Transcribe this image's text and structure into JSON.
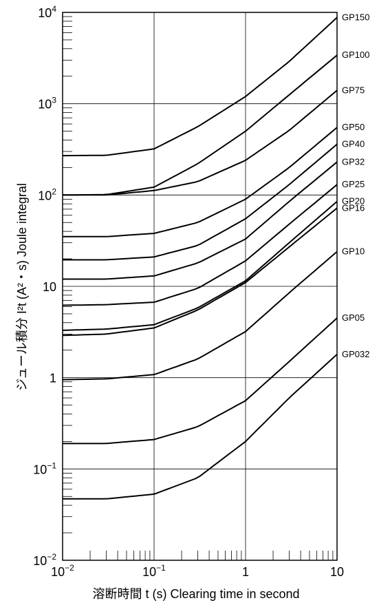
{
  "chart_data": {
    "type": "line",
    "x_scale": "log",
    "y_scale": "log",
    "xlim": [
      0.01,
      10
    ],
    "ylim": [
      0.01,
      10000
    ],
    "grid": true,
    "xlabel": "溶断時間 t (s)  Clearing time in second",
    "ylabel": "ジュール積分 I²t (A²・s)  Joule integral",
    "x_tick_labels": [
      {
        "value": 0.01,
        "base": "10",
        "exp": "−2"
      },
      {
        "value": 0.1,
        "base": "10",
        "exp": "−1"
      },
      {
        "value": 1,
        "base": "1",
        "exp": ""
      },
      {
        "value": 10,
        "base": "10",
        "exp": ""
      }
    ],
    "y_tick_labels": [
      {
        "value": 0.01,
        "base": "10",
        "exp": "−2"
      },
      {
        "value": 0.1,
        "base": "10",
        "exp": "−1"
      },
      {
        "value": 1,
        "base": "1",
        "exp": ""
      },
      {
        "value": 10,
        "base": "10",
        "exp": ""
      },
      {
        "value": 100,
        "base": "10",
        "exp": "2"
      },
      {
        "value": 1000,
        "base": "10",
        "exp": "3"
      },
      {
        "value": 10000,
        "base": "10",
        "exp": "4"
      }
    ],
    "series": [
      {
        "name": "GP150",
        "x": [
          0.01,
          0.03,
          0.1,
          0.3,
          1,
          3,
          10
        ],
        "y": [
          270,
          272,
          320,
          560,
          1200,
          2900,
          8800
        ]
      },
      {
        "name": "GP100",
        "x": [
          0.01,
          0.03,
          0.1,
          0.3,
          1,
          3,
          10
        ],
        "y": [
          100,
          101,
          122,
          220,
          500,
          1250,
          3400
        ]
      },
      {
        "name": "GP75",
        "x": [
          0.01,
          0.03,
          0.1,
          0.3,
          1,
          3,
          10
        ],
        "y": [
          100,
          100,
          112,
          140,
          240,
          510,
          1400
        ]
      },
      {
        "name": "GP50",
        "x": [
          0.01,
          0.03,
          0.1,
          0.3,
          1,
          3,
          10
        ],
        "y": [
          35,
          35,
          38,
          50,
          90,
          200,
          550
        ]
      },
      {
        "name": "GP40",
        "x": [
          0.01,
          0.03,
          0.1,
          0.3,
          1,
          3,
          10
        ],
        "y": [
          19.5,
          19.5,
          21,
          28,
          55,
          130,
          360
        ]
      },
      {
        "name": "GP32",
        "x": [
          0.01,
          0.03,
          0.1,
          0.3,
          1,
          3,
          10
        ],
        "y": [
          12,
          12,
          13,
          18,
          33,
          85,
          230
        ]
      },
      {
        "name": "GP25",
        "x": [
          0.01,
          0.03,
          0.1,
          0.3,
          1,
          3,
          10
        ],
        "y": [
          6.2,
          6.3,
          6.7,
          9.5,
          19,
          48,
          130
        ]
      },
      {
        "name": "GP20",
        "x": [
          0.01,
          0.03,
          0.1,
          0.3,
          1,
          3,
          10
        ],
        "y": [
          3.3,
          3.4,
          3.8,
          5.8,
          11.5,
          30,
          85
        ]
      },
      {
        "name": "GP16",
        "x": [
          0.01,
          0.03,
          0.1,
          0.3,
          1,
          3,
          10
        ],
        "y": [
          2.9,
          3.0,
          3.5,
          5.5,
          11,
          27,
          72
        ]
      },
      {
        "name": "GP10",
        "x": [
          0.01,
          0.03,
          0.1,
          0.3,
          1,
          3,
          10
        ],
        "y": [
          0.95,
          0.97,
          1.08,
          1.6,
          3.2,
          8.5,
          24
        ]
      },
      {
        "name": "GP05",
        "x": [
          0.01,
          0.03,
          0.1,
          0.3,
          1,
          3,
          10
        ],
        "y": [
          0.19,
          0.19,
          0.21,
          0.29,
          0.56,
          1.5,
          4.5
        ]
      },
      {
        "name": "GP032",
        "x": [
          0.01,
          0.03,
          0.1,
          0.3,
          1,
          3,
          10
        ],
        "y": [
          0.047,
          0.047,
          0.053,
          0.08,
          0.2,
          0.6,
          1.8
        ]
      }
    ]
  }
}
